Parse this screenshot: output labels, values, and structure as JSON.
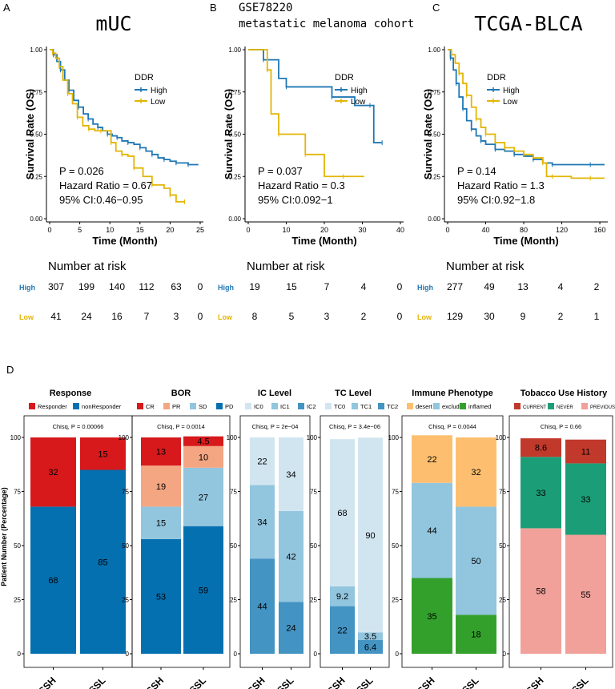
{
  "chart_data": {
    "km_panels": [
      {
        "type": "line",
        "subtype": "kaplan-meier",
        "panel_letter": "A",
        "title": "mUC",
        "subtitle": "",
        "xlabel": "Time (Month)",
        "ylabel": "Survival Rate (OS)",
        "xlim": [
          0,
          25
        ],
        "xticks": [
          "0",
          "5",
          "10",
          "15",
          "20",
          "25"
        ],
        "xtick_values": [
          0,
          5,
          10,
          15,
          20,
          25
        ],
        "ylim": [
          0,
          1
        ],
        "yticks": [
          "0.00",
          "0.25",
          "0.50",
          "0.75",
          "1.00"
        ],
        "ytick_values": [
          0,
          0.25,
          0.5,
          0.75,
          1
        ],
        "legend_title": "DDR",
        "legend": [
          "High",
          "Low"
        ],
        "series": [
          {
            "name": "High",
            "color": "#1f77b4",
            "x": [
              0,
              0.6,
              1.2,
              1.8,
              2.5,
              3.2,
              4,
              4.8,
              5.6,
              6.4,
              7.2,
              8,
              8.8,
              9.6,
              10.4,
              11.2,
              12,
              13,
              14,
              15,
              16,
              17,
              18,
              19,
              20,
              21,
              22,
              23,
              24.7
            ],
            "y": [
              1.0,
              0.97,
              0.93,
              0.88,
              0.82,
              0.76,
              0.7,
              0.66,
              0.62,
              0.59,
              0.56,
              0.54,
              0.52,
              0.5,
              0.49,
              0.48,
              0.46,
              0.45,
              0.44,
              0.42,
              0.4,
              0.38,
              0.36,
              0.35,
              0.34,
              0.33,
              0.33,
              0.32,
              0.32
            ]
          },
          {
            "name": "Low",
            "color": "#e3b505",
            "x": [
              0,
              0.5,
              1,
              1.6,
              2.2,
              3,
              3.8,
              4.6,
              5.5,
              6.5,
              7.5,
              8.5,
              9.5,
              10.2,
              11,
              12,
              13,
              14,
              15.5,
              17,
              19,
              20,
              21,
              22.4
            ],
            "y": [
              1.0,
              0.98,
              0.95,
              0.9,
              0.82,
              0.74,
              0.68,
              0.6,
              0.55,
              0.53,
              0.52,
              0.52,
              0.52,
              0.45,
              0.4,
              0.38,
              0.37,
              0.3,
              0.25,
              0.2,
              0.18,
              0.14,
              0.1,
              0.1
            ]
          }
        ],
        "annotations": [
          "P = 0.026",
          "Hazard Ratio = 0.67",
          "95% CI:0.46−0.95"
        ],
        "risk_table": {
          "title": "Number at risk",
          "rows": [
            {
              "label": "High",
              "color": "#1f77b4",
              "values": [
                "307",
                "199",
                "140",
                "112",
                "63",
                "0"
              ]
            },
            {
              "label": "Low",
              "color": "#e3b505",
              "values": [
                "41",
                "24",
                "16",
                "7",
                "3",
                "0"
              ]
            }
          ]
        }
      },
      {
        "type": "line",
        "subtype": "kaplan-meier",
        "panel_letter": "B",
        "title": "GSE78220",
        "subtitle": "metastatic melanoma cohort",
        "xlabel": "Time (Month)",
        "ylabel": "Survival Rate (OS)",
        "xlim": [
          0,
          40
        ],
        "xticks": [
          "0",
          "10",
          "20",
          "30",
          "40"
        ],
        "xtick_values": [
          0,
          10,
          20,
          30,
          40
        ],
        "ylim": [
          0,
          1
        ],
        "yticks": [
          "0.00",
          "0.25",
          "0.50",
          "0.75",
          "1.00"
        ],
        "ytick_values": [
          0,
          0.25,
          0.5,
          0.75,
          1
        ],
        "legend_title": "DDR",
        "legend": [
          "High",
          "Low"
        ],
        "series": [
          {
            "name": "High",
            "color": "#1f77b4",
            "x": [
              0,
              4,
              8,
              10,
              16,
              22,
              28,
              32,
              33,
              35.2
            ],
            "y": [
              1.0,
              0.94,
              0.83,
              0.78,
              0.78,
              0.72,
              0.67,
              0.67,
              0.45,
              0.45
            ]
          },
          {
            "name": "Low",
            "color": "#e3b505",
            "x": [
              0,
              5,
              6,
              8,
              10,
              15,
              20,
              25,
              30.5
            ],
            "y": [
              1.0,
              0.88,
              0.62,
              0.5,
              0.5,
              0.38,
              0.25,
              0.25,
              0.25
            ]
          }
        ],
        "annotations": [
          "P = 0.037",
          "Hazard Ratio = 0.3",
          "95% CI:0.092−1"
        ],
        "risk_table": {
          "title": "Number at risk",
          "rows": [
            {
              "label": "High",
              "color": "#1f77b4",
              "values": [
                "19",
                "15",
                "7",
                "4",
                "0"
              ]
            },
            {
              "label": "Low",
              "color": "#e3b505",
              "values": [
                "8",
                "5",
                "3",
                "2",
                "0"
              ]
            }
          ]
        }
      },
      {
        "type": "line",
        "subtype": "kaplan-meier",
        "panel_letter": "C",
        "title": "TCGA-BLCA",
        "subtitle": "",
        "xlabel": "Time (Month)",
        "ylabel": "Survival Rate (OS)",
        "xlim": [
          0,
          165
        ],
        "xticks": [
          "0",
          "40",
          "80",
          "120",
          "160"
        ],
        "xtick_values": [
          0,
          40,
          80,
          120,
          160
        ],
        "ylim": [
          0,
          1
        ],
        "yticks": [
          "0.00",
          "0.25",
          "0.50",
          "0.75",
          "1.00"
        ],
        "ytick_values": [
          0,
          0.25,
          0.5,
          0.75,
          1
        ],
        "legend_title": "DDR",
        "legend": [
          "High",
          "Low"
        ],
        "series": [
          {
            "name": "High",
            "color": "#1f77b4",
            "x": [
              0,
              3,
              6,
              9,
              12,
              16,
              20,
              25,
              30,
              35,
              40,
              50,
              60,
              70,
              80,
              90,
              100,
              110,
              130,
              150,
              165
            ],
            "y": [
              1.0,
              0.95,
              0.88,
              0.8,
              0.72,
              0.65,
              0.58,
              0.53,
              0.49,
              0.46,
              0.44,
              0.41,
              0.4,
              0.38,
              0.37,
              0.35,
              0.33,
              0.32,
              0.32,
              0.32,
              0.32
            ]
          },
          {
            "name": "Low",
            "color": "#e3b505",
            "x": [
              0,
              4,
              8,
              12,
              16,
              20,
              25,
              30,
              35,
              40,
              50,
              60,
              70,
              80,
              90,
              100,
              104,
              110,
              130,
              150,
              165
            ],
            "y": [
              1.0,
              0.97,
              0.92,
              0.86,
              0.8,
              0.73,
              0.66,
              0.59,
              0.54,
              0.5,
              0.45,
              0.42,
              0.4,
              0.38,
              0.36,
              0.33,
              0.25,
              0.25,
              0.24,
              0.24,
              0.24
            ]
          }
        ],
        "annotations": [
          "P = 0.14",
          "Hazard Ratio = 1.3",
          "95% CI:0.92−1.8"
        ],
        "risk_table": {
          "title": "Number at risk",
          "rows": [
            {
              "label": "High",
              "color": "#1f77b4",
              "values": [
                "277",
                "49",
                "13",
                "4",
                "2"
              ]
            },
            {
              "label": "Low",
              "color": "#e3b505",
              "values": [
                "129",
                "30",
                "9",
                "2",
                "1"
              ]
            }
          ]
        }
      }
    ],
    "bar_section": {
      "type": "bar",
      "subtype": "stacked-percentage",
      "panel_letter": "D",
      "ylabel": "Patient Number (Percentage)",
      "yticks": [
        "0",
        "25",
        "50",
        "75",
        "100"
      ],
      "ytick_values": [
        0,
        25,
        50,
        75,
        100
      ],
      "ylim": [
        0,
        100
      ],
      "panels": [
        {
          "title": "Response",
          "legend": [
            {
              "name": "Responder",
              "color": "#d7191c"
            },
            {
              "name": "nonResponder",
              "color": "#0570b0"
            }
          ],
          "test": "Chisq, P = 0.00066",
          "categories": [
            "DSSH",
            "DSSL"
          ],
          "series": [
            {
              "name": "nonResponder",
              "color": "#0570b0",
              "values": [
                68,
                85
              ],
              "labels": [
                "68",
                "85"
              ]
            },
            {
              "name": "Responder",
              "color": "#d7191c",
              "values": [
                32,
                15
              ],
              "labels": [
                "32",
                "15"
              ]
            }
          ]
        },
        {
          "title": "BOR",
          "legend": [
            {
              "name": "CR",
              "color": "#d7191c"
            },
            {
              "name": "PR",
              "color": "#f4a582"
            },
            {
              "name": "SD",
              "color": "#92c5de"
            },
            {
              "name": "PD",
              "color": "#0570b0"
            }
          ],
          "test": "Chisq, P = 0.0014",
          "categories": [
            "DSSH",
            "DSSL"
          ],
          "series": [
            {
              "name": "PD",
              "color": "#0570b0",
              "values": [
                53,
                59
              ],
              "labels": [
                "53",
                "59"
              ]
            },
            {
              "name": "SD",
              "color": "#92c5de",
              "values": [
                15,
                27
              ],
              "labels": [
                "15",
                "27"
              ]
            },
            {
              "name": "PR",
              "color": "#f4a582",
              "values": [
                19,
                10
              ],
              "labels": [
                "19",
                "10"
              ]
            },
            {
              "name": "CR",
              "color": "#d7191c",
              "values": [
                13,
                4.5
              ],
              "labels": [
                "13",
                "4.5"
              ]
            }
          ]
        },
        {
          "title": "IC Level",
          "legend": [
            {
              "name": "IC0",
              "color": "#d1e5f0"
            },
            {
              "name": "IC1",
              "color": "#92c5de"
            },
            {
              "name": "IC2",
              "color": "#4393c3"
            }
          ],
          "test": "Chisq, P = 2e−04",
          "categories": [
            "DSSH",
            "DSSL"
          ],
          "series": [
            {
              "name": "IC2",
              "color": "#4393c3",
              "values": [
                44,
                24
              ],
              "labels": [
                "44",
                "24"
              ]
            },
            {
              "name": "IC1",
              "color": "#92c5de",
              "values": [
                34,
                42
              ],
              "labels": [
                "34",
                "42"
              ]
            },
            {
              "name": "IC0",
              "color": "#d1e5f0",
              "values": [
                22,
                34
              ],
              "labels": [
                "22",
                "34"
              ]
            }
          ]
        },
        {
          "title": "TC Level",
          "legend": [
            {
              "name": "TC0",
              "color": "#d1e5f0"
            },
            {
              "name": "TC1",
              "color": "#92c5de"
            },
            {
              "name": "TC2",
              "color": "#4393c3"
            }
          ],
          "test": "Chisq, P = 3.4e−06",
          "categories": [
            "DSSH",
            "DSSL"
          ],
          "series": [
            {
              "name": "TC2",
              "color": "#4393c3",
              "values": [
                22,
                6.4
              ],
              "labels": [
                "22",
                "6.4"
              ]
            },
            {
              "name": "TC1",
              "color": "#92c5de",
              "values": [
                9.2,
                3.5
              ],
              "labels": [
                "9.2",
                "3.5"
              ]
            },
            {
              "name": "TC0",
              "color": "#d1e5f0",
              "values": [
                68,
                90
              ],
              "labels": [
                "68",
                "90"
              ]
            }
          ]
        },
        {
          "title": "Immune Phenotype",
          "legend": [
            {
              "name": "desert",
              "color": "#fdbf6f"
            },
            {
              "name": "excluded",
              "color": "#92c5de"
            },
            {
              "name": "inflamed",
              "color": "#33a02c"
            }
          ],
          "test": "Chisq, P = 0.0044",
          "categories": [
            "DSSH",
            "DSSL"
          ],
          "series": [
            {
              "name": "inflamed",
              "color": "#33a02c",
              "values": [
                35,
                18
              ],
              "labels": [
                "35",
                "18"
              ]
            },
            {
              "name": "excluded",
              "color": "#92c5de",
              "values": [
                44,
                50
              ],
              "labels": [
                "44",
                "50"
              ]
            },
            {
              "name": "desert",
              "color": "#fdbf6f",
              "values": [
                22,
                32
              ],
              "labels": [
                "22",
                "32"
              ]
            }
          ]
        },
        {
          "title": "Tobacco Use History",
          "legend": [
            {
              "name": "CURRENT",
              "color": "#c0392b"
            },
            {
              "name": "NEVER",
              "color": "#1b9e77"
            },
            {
              "name": "PREVIOUS",
              "color": "#f1a09a"
            }
          ],
          "test": "Chisq, P = 0.66",
          "categories": [
            "DSSH",
            "DSSL"
          ],
          "series": [
            {
              "name": "PREVIOUS",
              "color": "#f1a09a",
              "values": [
                58,
                55
              ],
              "labels": [
                "58",
                "55"
              ]
            },
            {
              "name": "NEVER",
              "color": "#1b9e77",
              "values": [
                33,
                33
              ],
              "labels": [
                "33",
                "33"
              ]
            },
            {
              "name": "CURRENT",
              "color": "#c0392b",
              "values": [
                8.6,
                11
              ],
              "labels": [
                "8.6",
                "11"
              ]
            }
          ]
        }
      ]
    }
  }
}
